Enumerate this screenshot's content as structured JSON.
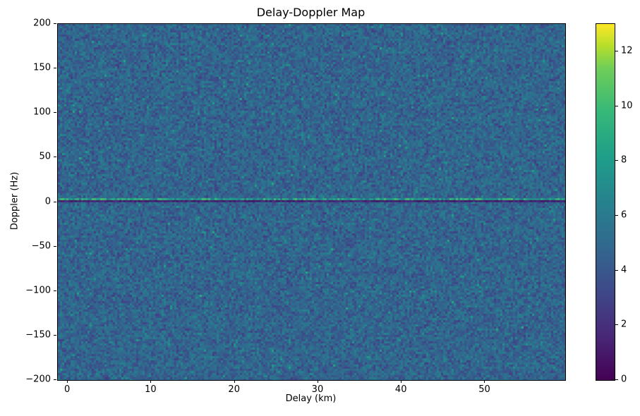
{
  "figure": {
    "background_color": "#ffffff"
  },
  "chart_data": {
    "type": "heatmap",
    "title": "Delay-Doppler Map",
    "xlabel": "Delay (km)",
    "ylabel": "Doppler (Hz)",
    "x_range": [
      -1.2,
      59.6
    ],
    "y_range": [
      -200,
      200
    ],
    "x_ticks": [
      0,
      10,
      20,
      30,
      40,
      50
    ],
    "x_tick_labels": [
      "0",
      "10",
      "20",
      "30",
      "40",
      "50"
    ],
    "y_ticks": [
      200,
      150,
      100,
      50,
      0,
      -50,
      -100,
      -150,
      -200
    ],
    "y_tick_labels": [
      "200",
      "150",
      "100",
      "50",
      "0",
      "−50",
      "−100",
      "−150",
      "−200"
    ],
    "grid": false,
    "legend": "none",
    "colormap": "viridis",
    "colormap_stops": {
      "positions": [
        0.0,
        0.125,
        0.25,
        0.375,
        0.5,
        0.625,
        0.75,
        0.875,
        0.9375,
        1.0
      ],
      "colors": [
        "#440154",
        "#482878",
        "#3e4989",
        "#31688e",
        "#26828e",
        "#1f9e89",
        "#35b779",
        "#6ece58",
        "#b5de2b",
        "#fde725"
      ]
    },
    "colorbar": {
      "min": 0,
      "max": 13,
      "ticks": [
        0,
        2,
        4,
        6,
        8,
        10,
        12
      ],
      "tick_labels": [
        "0",
        "2",
        "4",
        "6",
        "8",
        "10",
        "12"
      ]
    },
    "background_noise": {
      "description": "uniform speckle noise filling whole map",
      "mean_value": 4.7,
      "spread": 2.2,
      "bright_speckle_probability": 0.03,
      "bright_speckle_boost": 1.6
    },
    "features": [
      {
        "name": "zero-doppler-bright-band",
        "doppler_hz": 3,
        "extent_delay_km": [
          -1.2,
          59.6
        ],
        "value_range": [
          5.5,
          10.5
        ],
        "description": "thin bright green speckled band just above zero Doppler"
      },
      {
        "name": "zero-doppler-dark-line",
        "doppler_hz": 0,
        "extent_delay_km": [
          -1.2,
          59.6
        ],
        "value_range": [
          0.3,
          1.8
        ],
        "description": "thin near-black horizontal line at zero Doppler across full delay range"
      }
    ]
  }
}
